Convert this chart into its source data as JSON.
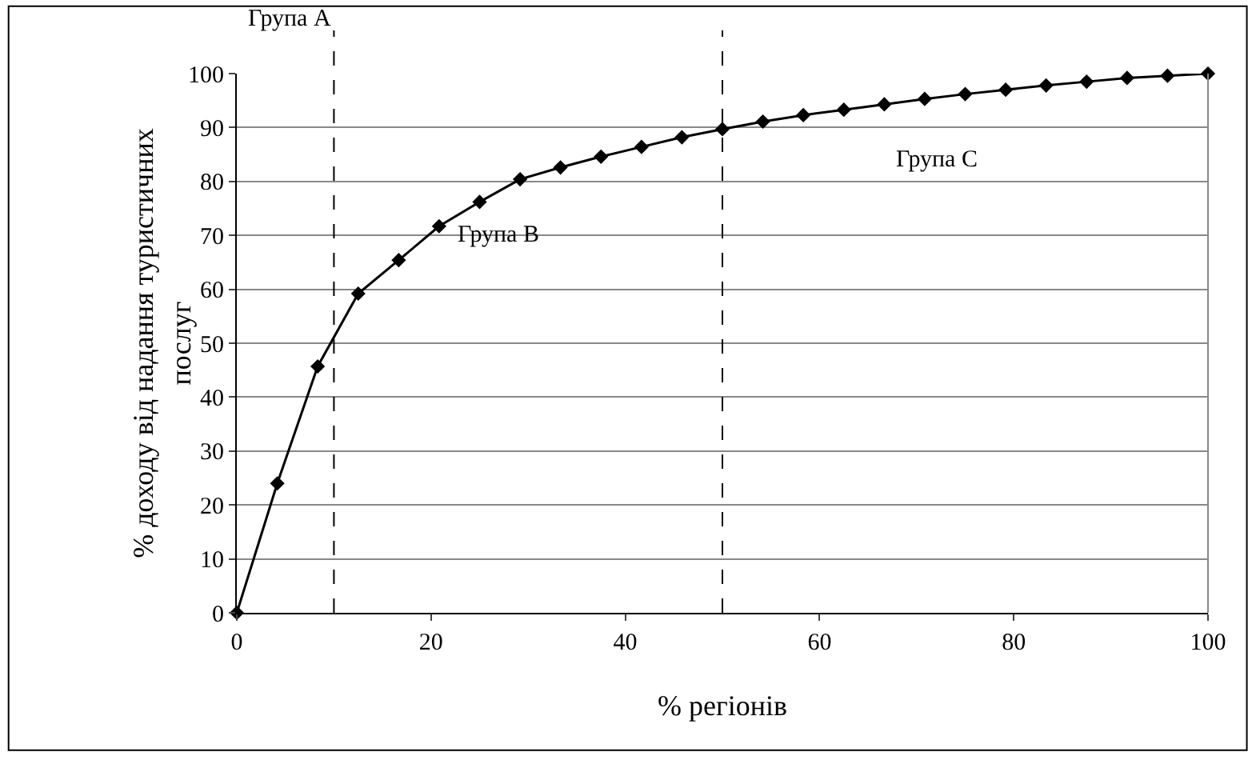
{
  "chart_data": {
    "type": "line",
    "xlabel": "% регіонів",
    "ylabel": "% доходу від надання туристичних послуг",
    "x": [
      0,
      4.17,
      8.33,
      12.5,
      16.67,
      20.83,
      25,
      29.17,
      33.33,
      37.5,
      41.67,
      45.83,
      50,
      54.17,
      58.33,
      62.5,
      66.67,
      70.83,
      75,
      79.17,
      83.33,
      87.5,
      91.67,
      95.83,
      100
    ],
    "series": [
      {
        "color": "#000000",
        "values": [
          0,
          24,
          45.7,
          59.2,
          65.4,
          71.7,
          76.2,
          80.4,
          82.6,
          84.6,
          86.4,
          88.2,
          89.7,
          91.1,
          92.3,
          93.3,
          94.3,
          95.3,
          96.2,
          97.0,
          97.8,
          98.5,
          99.2,
          99.6,
          100
        ]
      }
    ],
    "xlim": [
      0,
      100
    ],
    "xticks": [
      0,
      20,
      40,
      60,
      80,
      100
    ],
    "ylim": [
      0,
      100
    ],
    "yticks": [
      0,
      10,
      20,
      30,
      40,
      50,
      60,
      70,
      80,
      90,
      100
    ],
    "grid": "y",
    "marker": "diamond",
    "line_style": "solid",
    "ref_lines": [
      {
        "axis": "x",
        "value": 10,
        "color": "#000000",
        "line_style": "dashed"
      },
      {
        "axis": "x",
        "value": 50,
        "color": "#000000",
        "line_style": "dashed"
      }
    ],
    "annotations": [
      "Група A",
      "Група B",
      "Група C"
    ]
  }
}
